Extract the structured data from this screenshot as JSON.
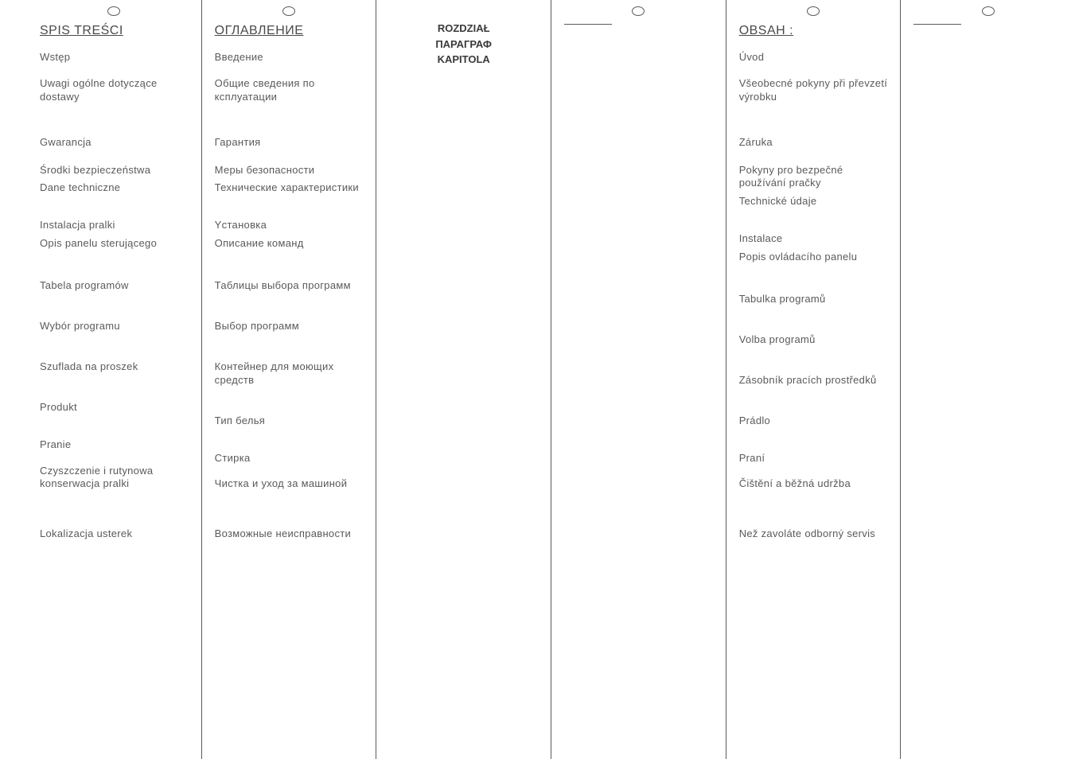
{
  "columns": [
    {
      "title": "SPIS TREŚCI",
      "show_circle": true,
      "show_rule": false,
      "chapter_labels": [],
      "items": [
        "Wstęp",
        "Uwagi ogólne dotyczące dostawy",
        "Gwarancja",
        "Środki bezpieczeństwa",
        "Dane techniczne",
        "Instalacja pralki",
        "Opis panelu sterującego",
        "Tabela programów",
        "Wybór programu",
        "Szuflada na proszek",
        "Produkt",
        "Pranie",
        "Czyszczenie i rutynowa konserwacja pralki",
        "Lokalizacja usterek"
      ]
    },
    {
      "title": "ОГЛАВЛЕНИЕ",
      "show_circle": true,
      "show_rule": false,
      "chapter_labels": [],
      "items": [
        "Введение",
        "Общие сведения по ксплуатации",
        "Гарантия",
        "Меры безопасности",
        "Технические характеристики",
        "Yстановка",
        "Описание команд",
        "Таблицы выбора программ",
        "Выбор программ",
        "Контейнер для моющих средств",
        "Тип белья",
        "Стирка",
        "Чистка и уход за машиной",
        "Возможные неисправности"
      ]
    },
    {
      "title": "",
      "show_circle": false,
      "show_rule": false,
      "chapter_labels": [
        "ROZDZIAŁ",
        "ПАРАГРАФ",
        "KAPITOLA"
      ],
      "items": []
    },
    {
      "title": "",
      "show_circle": true,
      "show_rule": true,
      "chapter_labels": [],
      "items": []
    },
    {
      "title": "OBSAH :",
      "show_circle": true,
      "show_rule": false,
      "chapter_labels": [],
      "items": [
        "Úvod",
        "Všeobecné pokyny při převzetí výrobku",
        "Záruka",
        "Pokyny pro bezpečné používání pračky",
        "Technické údaje",
        "Instalace",
        "Popis ovládacího panelu",
        "Tabulka programů",
        "Volba programů",
        "Zásobník pracích prostředků",
        "Prádlo",
        "Praní",
        "Čištění a běžná udržba",
        "Než zavoláte odborný servis"
      ]
    },
    {
      "title": "",
      "show_circle": true,
      "show_rule": true,
      "chapter_labels": [],
      "items": []
    }
  ],
  "item_margins": [
    16,
    40,
    18,
    6,
    30,
    6,
    36,
    34,
    34,
    34,
    30,
    16,
    46,
    36,
    36
  ],
  "style": {
    "bg": "#ffffff",
    "text_color": "#5a5a5a",
    "border_color": "#5a5a5a",
    "title_fontsize": 16,
    "item_fontsize": 13
  }
}
